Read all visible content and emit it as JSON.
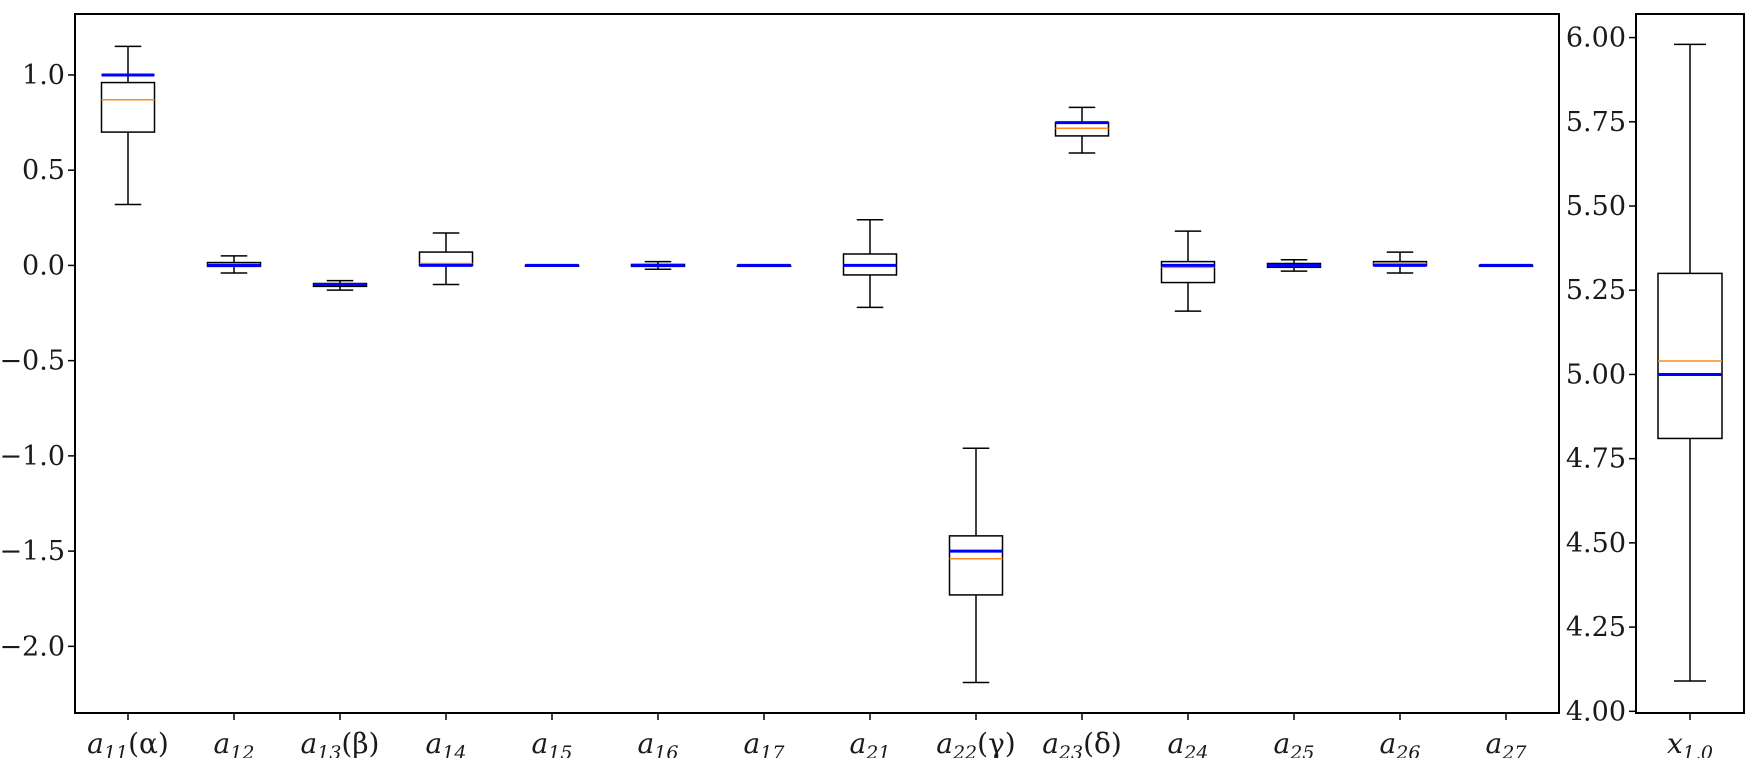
{
  "chart_data": [
    {
      "type": "boxplot",
      "ylim": [
        -2.35,
        1.32
      ],
      "yticks": [
        1.0,
        0.5,
        0.0,
        -0.5,
        -1.0,
        -1.5,
        -2.0
      ],
      "ytick_labels": [
        "1.0",
        "0.5",
        "0.0",
        "−0.5",
        "−1.0",
        "−1.5",
        "−2.0"
      ],
      "true_value_color": "#0000ff",
      "median_color": "#ff8c1a",
      "box_color": "#000000",
      "boxes": [
        {
          "label": "a",
          "sub": "11",
          "suffix": "(α)",
          "whisker_low": 0.32,
          "q1": 0.7,
          "median": 0.87,
          "q3": 0.96,
          "whisker_high": 1.15,
          "true": 1.0
        },
        {
          "label": "a",
          "sub": "12",
          "suffix": "",
          "whisker_low": -0.04,
          "q1": -0.005,
          "median": 0.005,
          "q3": 0.015,
          "whisker_high": 0.05,
          "true": 0.0
        },
        {
          "label": "a",
          "sub": "13",
          "suffix": "(β)",
          "whisker_low": -0.13,
          "q1": -0.11,
          "median": -0.1,
          "q3": -0.095,
          "whisker_high": -0.08,
          "true": -0.1
        },
        {
          "label": "a",
          "sub": "14",
          "suffix": "",
          "whisker_low": -0.1,
          "q1": 0.0,
          "median": 0.01,
          "q3": 0.07,
          "whisker_high": 0.17,
          "true": 0.0
        },
        {
          "label": "a",
          "sub": "15",
          "suffix": "",
          "whisker_low": -0.002,
          "q1": -0.001,
          "median": 0.0,
          "q3": 0.001,
          "whisker_high": 0.002,
          "true": 0.0
        },
        {
          "label": "a",
          "sub": "16",
          "suffix": "",
          "whisker_low": -0.02,
          "q1": -0.005,
          "median": 0.0,
          "q3": 0.005,
          "whisker_high": 0.02,
          "true": 0.0
        },
        {
          "label": "a",
          "sub": "17",
          "suffix": "",
          "whisker_low": -0.001,
          "q1": -0.0005,
          "median": 0.0,
          "q3": 0.0005,
          "whisker_high": 0.001,
          "true": 0.0
        },
        {
          "label": "a",
          "sub": "21",
          "suffix": "",
          "whisker_low": -0.22,
          "q1": -0.05,
          "median": 0.0,
          "q3": 0.06,
          "whisker_high": 0.24,
          "true": 0.0
        },
        {
          "label": "a",
          "sub": "22",
          "suffix": "(γ)",
          "whisker_low": -2.19,
          "q1": -1.73,
          "median": -1.54,
          "q3": -1.42,
          "whisker_high": -0.96,
          "true": -1.5
        },
        {
          "label": "a",
          "sub": "23",
          "suffix": "(δ)",
          "whisker_low": 0.59,
          "q1": 0.68,
          "median": 0.72,
          "q3": 0.75,
          "whisker_high": 0.83,
          "true": 0.75
        },
        {
          "label": "a",
          "sub": "24",
          "suffix": "",
          "whisker_low": -0.24,
          "q1": -0.09,
          "median": -0.01,
          "q3": 0.02,
          "whisker_high": 0.18,
          "true": 0.0
        },
        {
          "label": "a",
          "sub": "25",
          "suffix": "",
          "whisker_low": -0.03,
          "q1": -0.01,
          "median": 0.0,
          "q3": 0.01,
          "whisker_high": 0.03,
          "true": 0.0
        },
        {
          "label": "a",
          "sub": "26",
          "suffix": "",
          "whisker_low": -0.04,
          "q1": 0.0,
          "median": 0.01,
          "q3": 0.02,
          "whisker_high": 0.07,
          "true": 0.0
        },
        {
          "label": "a",
          "sub": "27",
          "suffix": "",
          "whisker_low": -0.001,
          "q1": -0.0005,
          "median": 0.0,
          "q3": 0.0005,
          "whisker_high": 0.001,
          "true": 0.0
        }
      ]
    },
    {
      "type": "boxplot",
      "ylim": [
        3.995,
        6.07
      ],
      "yticks": [
        6.0,
        5.75,
        5.5,
        5.25,
        5.0,
        4.75,
        4.5,
        4.25,
        4.0
      ],
      "ytick_labels": [
        "6.00",
        "5.75",
        "5.50",
        "5.25",
        "5.00",
        "4.75",
        "4.50",
        "4.25",
        "4.00"
      ],
      "ytick_side": "left",
      "boxes": [
        {
          "label": "x",
          "sub": "1,0",
          "suffix": "",
          "whisker_low": 4.09,
          "q1": 4.81,
          "median": 5.04,
          "q3": 5.3,
          "whisker_high": 5.98,
          "true": 5.0
        }
      ]
    }
  ]
}
